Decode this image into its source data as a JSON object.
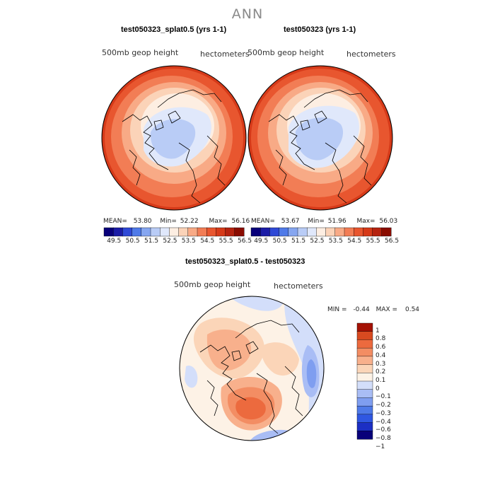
{
  "figure": {
    "title": "ANN",
    "colors": {
      "abs_palette": [
        "#08007a",
        "#1b1ca6",
        "#2f49d6",
        "#4f7ae8",
        "#86a6f0",
        "#b9ccf6",
        "#e0e8fb",
        "#fdeee2",
        "#fbd3b8",
        "#f8aa86",
        "#f27d55",
        "#e8562f",
        "#d63a19",
        "#b52310",
        "#8a0c00"
      ],
      "diff_palette": [
        "#08007a",
        "#1c2fc4",
        "#2f57e2",
        "#4f7ae8",
        "#7f9ef0",
        "#a9bdf5",
        "#d3defa",
        "#fdf2e6",
        "#fbd5b8",
        "#f8b08c",
        "#f38d63",
        "#ec6a3e",
        "#d84a20",
        "#a41205"
      ]
    },
    "panels": [
      {
        "title": "test050323_splat0.5 (yrs 1-1)",
        "variable": "500mb geop height",
        "units": "hectometers",
        "stats": {
          "mean_label": "MEAN=",
          "mean": "53.80",
          "min_label": "Min=",
          "min": "52.22",
          "max_label": "Max=",
          "max": "56.16"
        },
        "colorbar_labels": [
          "49.5",
          "50.5",
          "51.5",
          "52.5",
          "53.5",
          "54.5",
          "55.5",
          "56.5"
        ]
      },
      {
        "title": "test050323 (yrs 1-1)",
        "variable": "500mb geop height",
        "units": "hectometers",
        "stats": {
          "mean_label": "MEAN=",
          "mean": "53.67",
          "min_label": "Min=",
          "min": "51.96",
          "max_label": "Max=",
          "max": "56.03"
        },
        "colorbar_labels": [
          "49.5",
          "50.5",
          "51.5",
          "52.5",
          "53.5",
          "54.5",
          "55.5",
          "56.5"
        ]
      }
    ],
    "difference": {
      "title": "test050323_splat0.5 - test050323",
      "variable": "500mb geop height",
      "units": "hectometers",
      "stats": {
        "min_label": "MIN =",
        "min": "-0.44",
        "max_label": "MAX =",
        "max": "0.54"
      },
      "colorbar_labels": [
        "1",
        "0.8",
        "0.6",
        "0.4",
        "0.3",
        "0.2",
        "0.1",
        "0",
        "−0.1",
        "−0.2",
        "−0.3",
        "−0.4",
        "−0.6",
        "−0.8",
        "−1"
      ]
    }
  }
}
